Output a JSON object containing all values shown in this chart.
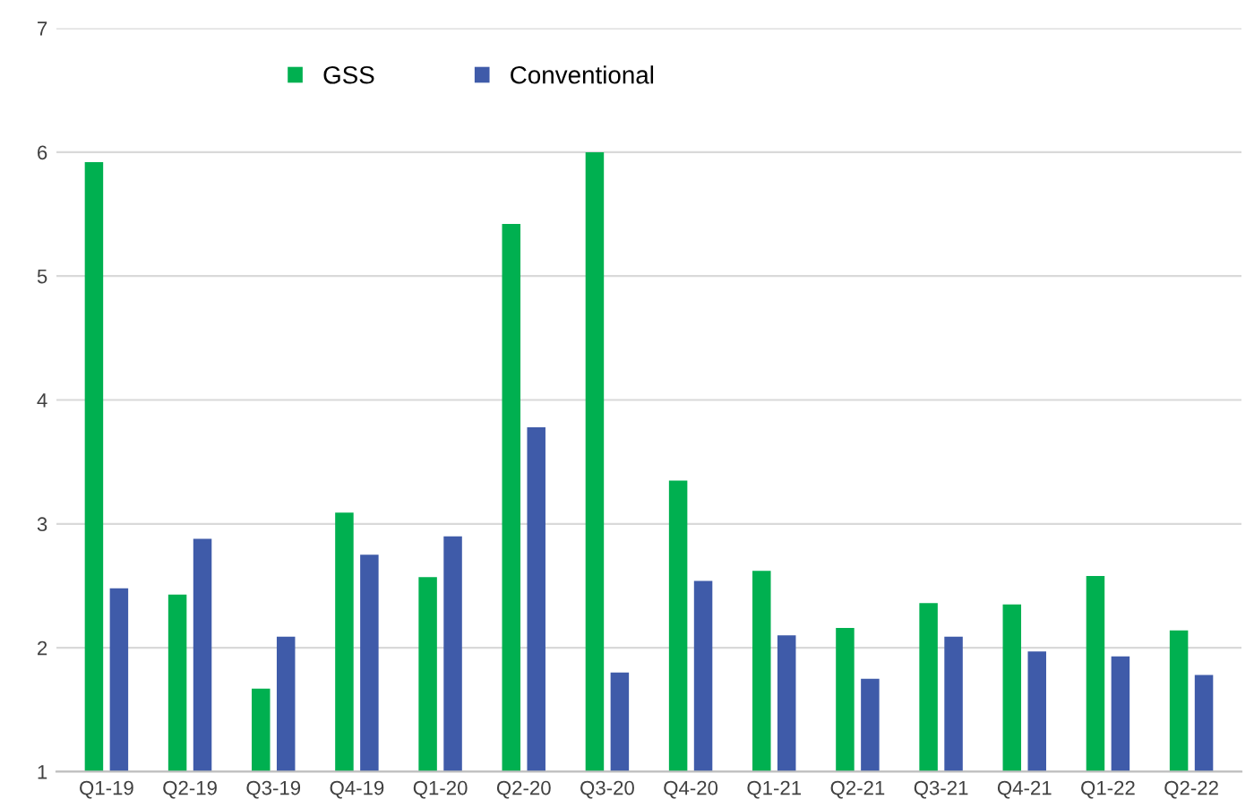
{
  "chart_data": {
    "type": "bar",
    "categories": [
      "Q1-19",
      "Q2-19",
      "Q3-19",
      "Q4-19",
      "Q1-20",
      "Q2-20",
      "Q3-20",
      "Q4-20",
      "Q1-21",
      "Q2-21",
      "Q3-21",
      "Q4-21",
      "Q1-22",
      "Q2-22"
    ],
    "series": [
      {
        "name": "GSS",
        "color": "#00b050",
        "values": [
          5.92,
          2.43,
          1.67,
          3.09,
          2.57,
          5.42,
          6.0,
          3.35,
          2.62,
          2.16,
          2.36,
          2.35,
          2.58,
          2.14
        ]
      },
      {
        "name": "Conventional",
        "color": "#3f5ba9",
        "values": [
          2.48,
          2.88,
          2.09,
          2.75,
          2.9,
          3.78,
          1.8,
          2.54,
          2.1,
          1.75,
          2.09,
          1.97,
          1.93,
          1.78
        ]
      }
    ],
    "ylim": [
      1,
      7
    ],
    "yticks": [
      1,
      2,
      3,
      4,
      5,
      6,
      7
    ],
    "grid": "y",
    "legend": "top"
  }
}
